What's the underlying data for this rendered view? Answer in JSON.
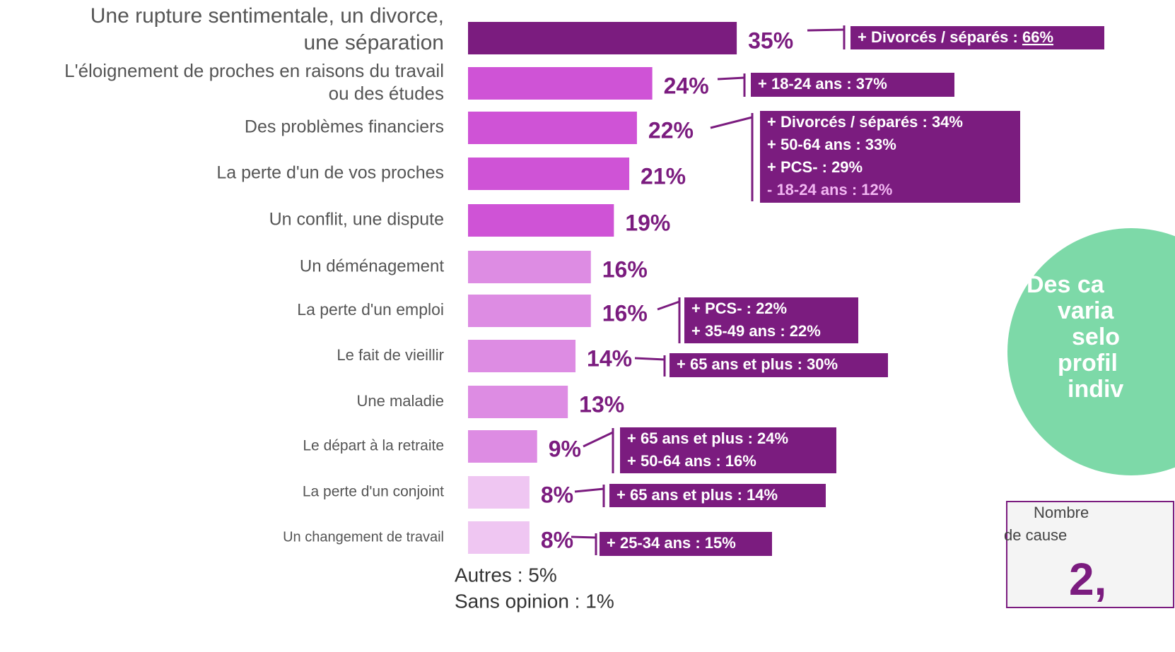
{
  "chart_data": {
    "type": "bar",
    "orientation": "horizontal",
    "categories": [
      [
        "Une rupture sentimentale, un divorce,",
        "une séparation"
      ],
      [
        "L'éloignement de proches en raisons du travail",
        "ou des études"
      ],
      [
        "Des problèmes financiers"
      ],
      [
        "La perte d'un de vos proches"
      ],
      [
        "Un conflit, une dispute"
      ],
      [
        "Un déménagement"
      ],
      [
        "La perte d'un emploi"
      ],
      [
        "Le fait de vieillir"
      ],
      [
        "Une maladie"
      ],
      [
        "Le départ à la retraite"
      ],
      [
        "La perte d'un conjoint"
      ],
      [
        "Un changement de travail"
      ]
    ],
    "values": [
      35,
      24,
      22,
      21,
      19,
      16,
      16,
      14,
      13,
      9,
      8,
      8
    ],
    "value_labels": [
      "35%",
      "24%",
      "22%",
      "21%",
      "19%",
      "16%",
      "16%",
      "14%",
      "13%",
      "9%",
      "8%",
      "8%"
    ],
    "colors": [
      "#7b1c7f",
      "#cf53d6",
      "#cf53d6",
      "#cf53d6",
      "#cf53d6",
      "#dd8ce3",
      "#dd8ce3",
      "#dd8ce3",
      "#dd8ce3",
      "#dd8ce3",
      "#efc6f2",
      "#efc6f2"
    ],
    "annotations": [
      {
        "lines": [
          {
            "parts": [
              "+ Divorcés / séparés : ",
              "66%"
            ]
          }
        ]
      },
      {
        "lines": [
          {
            "parts": [
              "+ 18-24 ans : 37%"
            ]
          }
        ]
      },
      {
        "lines": [
          {
            "parts": [
              "+ Divorcés / séparés : 34%"
            ]
          },
          {
            "parts": [
              "+ 50-64 ans : 33%"
            ]
          },
          {
            "parts": [
              "+ PCS- : 29%"
            ]
          },
          {
            "parts": [
              "- 18-24 ans : 12%"
            ],
            "color": "#f2b6f2"
          }
        ]
      },
      {
        "lines": [
          {
            "parts": [
              "+ PCS- : 22%"
            ]
          },
          {
            "parts": [
              "+ 35-49 ans : 22%"
            ]
          }
        ]
      },
      {
        "lines": [
          {
            "parts": [
              "+ 65 ans et plus : 30%"
            ]
          }
        ]
      },
      {
        "lines": [
          {
            "parts": [
              "+ 65 ans et plus : 24%"
            ]
          },
          {
            "parts": [
              "+ 50-64 ans : 16%"
            ]
          }
        ]
      },
      {
        "lines": [
          {
            "parts": [
              "+ 65 ans et plus : 14%"
            ]
          }
        ]
      },
      {
        "lines": [
          {
            "parts": [
              "+ 25-34 ans : 15%"
            ]
          }
        ]
      }
    ],
    "footnotes": [
      "Autres : 5%",
      "Sans opinion : 1%"
    ],
    "callout": [
      "Des ca",
      "varia",
      "selo",
      "profil",
      "indiv"
    ],
    "box_label": [
      "Nombre",
      "de cause"
    ],
    "box_value": "2,"
  }
}
